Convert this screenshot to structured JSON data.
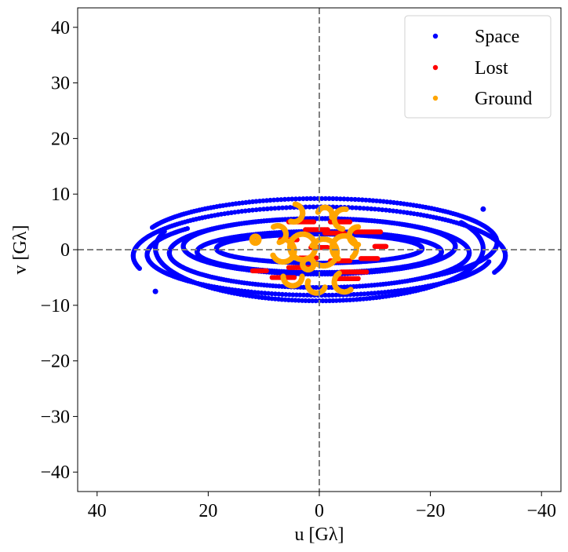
{
  "chart_data": {
    "type": "scatter",
    "title": "",
    "xlabel": "u [Gλ]",
    "ylabel": "v [Gλ]",
    "xlim": [
      43.5,
      -43.5
    ],
    "ylim": [
      -43.5,
      43.5
    ],
    "xticks": [
      40,
      20,
      0,
      -20,
      -40
    ],
    "xtick_labels": [
      "40",
      "20",
      "0",
      "−20",
      "−40"
    ],
    "yticks": [
      40,
      30,
      20,
      10,
      0,
      -10,
      -20,
      -30,
      -40
    ],
    "ytick_labels": [
      "40",
      "30",
      "20",
      "10",
      "0",
      "−10",
      "−20",
      "−30",
      "−40"
    ],
    "reference_lines": {
      "x": 0,
      "y": 0,
      "style": "dashed",
      "color": "#808080"
    },
    "legend": {
      "position": "top-right"
    },
    "series": [
      {
        "name": "Space",
        "color": "#0000ff",
        "pattern": "elliptical-tracks",
        "tracks": [
          {
            "a": 33.5,
            "b": 8.8,
            "cy": -1.1,
            "t0": -15,
            "t1": 200
          },
          {
            "a": 32.0,
            "b": 7.9,
            "cy": 1.3,
            "t0": 20,
            "t1": 235
          },
          {
            "a": 29.5,
            "b": 9.4,
            "cy": 0.2,
            "t0": 150,
            "t1": 380
          },
          {
            "a": 27.0,
            "b": 6.2,
            "cy": -0.6,
            "t0": 0,
            "t1": 360
          },
          {
            "a": 24.5,
            "b": 5.0,
            "cy": 0.6,
            "t0": 0,
            "t1": 360
          },
          {
            "a": 22.0,
            "b": 3.7,
            "cy": -0.4,
            "t0": 0,
            "t1": 360
          },
          {
            "a": 31.0,
            "b": 7.3,
            "cy": -0.9,
            "t0": 190,
            "t1": 400
          },
          {
            "a": 18.5,
            "b": 2.6,
            "cy": 0.2,
            "t0": 0,
            "t1": 360
          }
        ],
        "open_ends": [
          {
            "u": 29.5,
            "v": -7.5
          },
          {
            "u": -29.5,
            "v": 7.3
          }
        ]
      },
      {
        "name": "Lost",
        "color": "#ff0000",
        "pattern": "short-streaks",
        "streaks": [
          [
            5.5,
            5.0,
            1.0,
            5.0
          ],
          [
            2.5,
            3.6,
            -1.5,
            3.6
          ],
          [
            -1.0,
            3.0,
            -4.5,
            3.0
          ],
          [
            -6.5,
            3.2,
            -11.0,
            3.2
          ],
          [
            7.0,
            1.8,
            4.0,
            1.8
          ],
          [
            3.5,
            -1.5,
            0.5,
            -1.5
          ],
          [
            -2.0,
            -2.0,
            -5.5,
            -2.0
          ],
          [
            -7.5,
            -1.6,
            -10.5,
            -1.6
          ],
          [
            5.5,
            -3.2,
            1.5,
            -3.2
          ],
          [
            -4.0,
            -4.0,
            -8.5,
            -4.0
          ],
          [
            8.5,
            -5.0,
            4.5,
            -5.0
          ],
          [
            -3.0,
            -5.2,
            -7.0,
            -5.2
          ],
          [
            -2.0,
            5.0,
            -5.5,
            5.0
          ],
          [
            12.0,
            -3.8,
            9.5,
            -3.8
          ],
          [
            -10.0,
            0.6,
            -12.0,
            0.6
          ],
          [
            1.5,
            0.4,
            -1.5,
            0.4
          ]
        ]
      },
      {
        "name": "Ground",
        "color": "#ffa500",
        "pattern": "arc-clusters",
        "arcs": [
          {
            "cu": 4.6,
            "cv": 6.6,
            "r": 1.6,
            "t0": 100,
            "t1": 290
          },
          {
            "cu": -1.0,
            "cv": 6.3,
            "r": 1.3,
            "t0": 20,
            "t1": 200
          },
          {
            "cu": -4.5,
            "cv": 5.5,
            "r": 1.8,
            "t0": -80,
            "t1": 100
          },
          {
            "cu": 7.5,
            "cv": 2.8,
            "r": 1.5,
            "t0": 60,
            "t1": 260
          },
          {
            "cu": 6.5,
            "cv": -0.2,
            "r": 2.0,
            "t0": 120,
            "t1": 340
          },
          {
            "cu": 3.0,
            "cv": 0.5,
            "r": 2.3,
            "t0": 0,
            "t1": 360
          },
          {
            "cu": -0.8,
            "cv": -0.5,
            "r": 2.4,
            "t0": 30,
            "t1": 300
          },
          {
            "cu": -4.5,
            "cv": 0.3,
            "r": 2.2,
            "t0": -60,
            "t1": 230
          },
          {
            "cu": -7.0,
            "cv": 2.5,
            "r": 1.6,
            "t0": -90,
            "t1": 90
          },
          {
            "cu": 4.8,
            "cv": -4.8,
            "r": 1.7,
            "t0": 180,
            "t1": 360
          },
          {
            "cu": 0.5,
            "cv": -6.2,
            "r": 1.6,
            "t0": 200,
            "t1": 380
          },
          {
            "cu": -4.5,
            "cv": -5.8,
            "r": 1.8,
            "t0": 230,
            "t1": 420
          },
          {
            "cu": 11.5,
            "cv": 1.8,
            "r": 0.6,
            "t0": 0,
            "t1": 360
          },
          {
            "cu": 2.0,
            "cv": -2.6,
            "r": 1.0,
            "t0": 0,
            "t1": 360
          }
        ]
      }
    ]
  }
}
